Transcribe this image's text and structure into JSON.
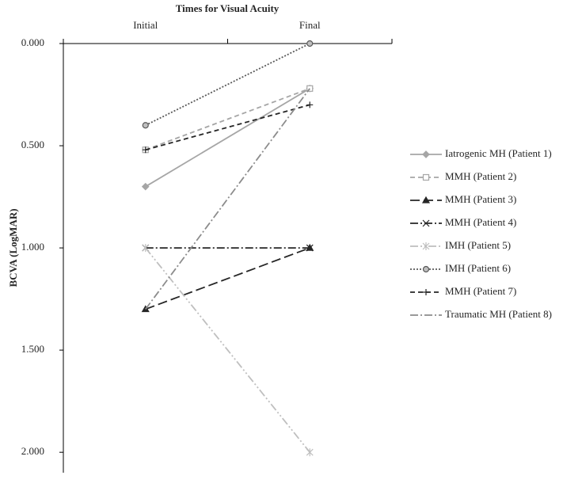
{
  "chart_data": {
    "type": "line",
    "title": "Times for Visual Acuity",
    "y_label": "BCVA (LogMAR)",
    "categories": [
      "Initial",
      "Final"
    ],
    "ylim": [
      0,
      2.1
    ],
    "y_reversed": true,
    "x_axis_position": "top",
    "yticks": [
      {
        "value": 0,
        "label": "0.000"
      },
      {
        "value": 0.5,
        "label": "0.500"
      },
      {
        "value": 1,
        "label": "1.000"
      },
      {
        "value": 1.5,
        "label": "1.500"
      },
      {
        "value": 2,
        "label": "2.000"
      }
    ],
    "legend": "right",
    "series": [
      {
        "name": "Iatrogenic MH (Patient 1)",
        "color": "#a6a6a6",
        "dash": "solid",
        "marker": "diamond",
        "values": [
          0.7,
          0.22
        ]
      },
      {
        "name": "MMH (Patient 2)",
        "color": "#a6a6a6",
        "dash": "dashed",
        "marker": "square",
        "values": [
          0.52,
          0.22
        ]
      },
      {
        "name": "MMH (Patient 3)",
        "color": "#262626",
        "dash": "longdash",
        "marker": "triangle",
        "values": [
          1.3,
          1.0
        ]
      },
      {
        "name": "MMH (Patient 4)",
        "color": "#262626",
        "dash": "dashdot",
        "marker": "x",
        "values": [
          1.0,
          1.0
        ]
      },
      {
        "name": "IMH (Patient 5)",
        "color": "#bfbfbf",
        "dash": "dashdotdot",
        "marker": "asterisk",
        "values": [
          1.0,
          2.0
        ]
      },
      {
        "name": "IMH (Patient 6)",
        "color": "#595959",
        "dash": "dotted",
        "marker": "circle",
        "values": [
          0.4,
          0.0
        ]
      },
      {
        "name": "MMH (Patient 7)",
        "color": "#262626",
        "dash": "dashed",
        "marker": "plus",
        "values": [
          0.52,
          0.3
        ]
      },
      {
        "name": "Traumatic MH (Patient 8)",
        "color": "#8c8c8c",
        "dash": "dashdot",
        "marker": "none",
        "values": [
          1.3,
          0.22
        ]
      }
    ]
  }
}
